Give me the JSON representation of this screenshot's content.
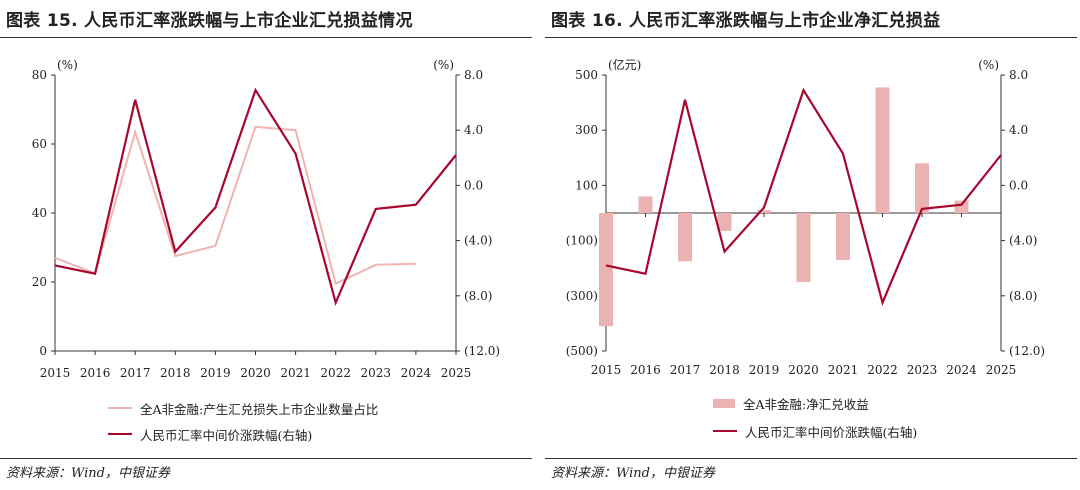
{
  "colors": {
    "primary": "#a8072e",
    "secondary": "#f0b3b3",
    "bar": "#ebb2b2"
  },
  "left": {
    "title": "图表 15. 人民币汇率涨跌幅与上市企业汇兑损益情况",
    "source": "资料来源：Wind，中银证券",
    "chart_data": {
      "type": "line",
      "categories": [
        "2015",
        "2016",
        "2017",
        "2018",
        "2019",
        "2020",
        "2021",
        "2022",
        "2023",
        "2024",
        "2025"
      ],
      "left_axis": {
        "unit": "(%)",
        "ticks": [
          "0",
          "20",
          "40",
          "60",
          "80"
        ],
        "ylim": [
          0,
          80
        ]
      },
      "right_axis": {
        "unit": "(%)",
        "ticks": [
          "8.0",
          "4.0",
          "0.0",
          "(4.0)",
          "(8.0)",
          "(12.0)"
        ],
        "ylim": [
          -12,
          8
        ]
      },
      "series": [
        {
          "name": "全A非金融:产生汇兑损失上市企业数量占比",
          "axis": "left",
          "color": "#f0b3b3",
          "values": [
            27,
            22.5,
            63.5,
            27.5,
            30.5,
            65,
            64,
            19.5,
            25,
            25.3,
            null
          ]
        },
        {
          "name": "人民币汇率中间价涨跌幅(右轴)",
          "axis": "right",
          "color": "#a8072e",
          "values": [
            -5.8,
            -6.4,
            6.2,
            -4.8,
            -1.6,
            6.9,
            2.3,
            -8.5,
            -1.7,
            -1.4,
            2.2
          ]
        }
      ]
    }
  },
  "right": {
    "title": "图表 16. 人民币汇率涨跌幅与上市企业净汇兑损益",
    "source": "资料来源：Wind，中银证券",
    "chart_data": {
      "type": "bar",
      "categories": [
        "2015",
        "2016",
        "2017",
        "2018",
        "2019",
        "2020",
        "2021",
        "2022",
        "2023",
        "2024",
        "2025"
      ],
      "left_axis": {
        "unit": "(亿元)",
        "ticks": [
          "500",
          "300",
          "100",
          "(100)",
          "(300)",
          "(500)"
        ],
        "ylim": [
          -500,
          500
        ]
      },
      "right_axis": {
        "unit": "(%)",
        "ticks": [
          "8.0",
          "4.0",
          "0.0",
          "(4.0)",
          "(8.0)",
          "(12.0)"
        ],
        "ylim": [
          -12,
          8
        ]
      },
      "series": [
        {
          "name": "全A非金融:净汇兑收益",
          "axis": "left",
          "kind": "bar",
          "color": "#ebb2b2",
          "values": [
            -410,
            60,
            -175,
            -65,
            10,
            -250,
            -170,
            455,
            180,
            45,
            null
          ]
        },
        {
          "name": "人民币汇率中间价涨跌幅(右轴)",
          "axis": "right",
          "kind": "line",
          "color": "#a8072e",
          "values": [
            -5.8,
            -6.4,
            6.2,
            -4.8,
            -1.6,
            6.9,
            2.3,
            -8.5,
            -1.7,
            -1.4,
            2.2
          ]
        }
      ]
    }
  }
}
